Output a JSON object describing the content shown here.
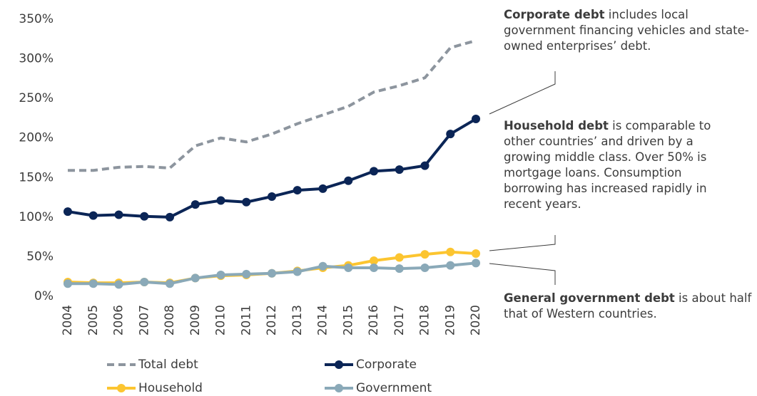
{
  "chart_data": {
    "type": "line",
    "categories": [
      "2004",
      "2005",
      "2006",
      "2007",
      "2008",
      "2009",
      "2010",
      "2011",
      "2012",
      "2013",
      "2014",
      "2015",
      "2016",
      "2017",
      "2018",
      "2019",
      "2020"
    ],
    "series": [
      {
        "name": "Total debt",
        "color": "#8d959e",
        "dashed": true,
        "markers": false,
        "values": [
          159,
          159,
          163,
          164,
          162,
          190,
          200,
          195,
          205,
          218,
          229,
          240,
          258,
          266,
          276,
          314,
          323
        ]
      },
      {
        "name": "Corporate",
        "color": "#0b2556",
        "dashed": false,
        "markers": true,
        "values": [
          107,
          102,
          103,
          101,
          100,
          116,
          121,
          119,
          126,
          134,
          136,
          146,
          158,
          160,
          165,
          205,
          224
        ]
      },
      {
        "name": "Household",
        "color": "#fcc530",
        "dashed": false,
        "markers": true,
        "values": [
          18,
          17,
          17,
          18,
          17,
          23,
          26,
          27,
          29,
          32,
          36,
          39,
          45,
          49,
          53,
          56,
          54
        ]
      },
      {
        "name": "Government",
        "color": "#8aa9b8",
        "dashed": false,
        "markers": true,
        "values": [
          16,
          16,
          15,
          18,
          16,
          23,
          27,
          28,
          29,
          31,
          38,
          36,
          36,
          35,
          36,
          39,
          42
        ]
      }
    ],
    "ylim": [
      0,
      350
    ],
    "yticks": [
      {
        "value": 0,
        "label": "0%"
      },
      {
        "value": 50,
        "label": "50%"
      },
      {
        "value": 100,
        "label": "100%"
      },
      {
        "value": 150,
        "label": "150%"
      },
      {
        "value": 200,
        "label": "200%"
      },
      {
        "value": 250,
        "label": "250%"
      },
      {
        "value": 300,
        "label": "300%"
      },
      {
        "value": 350,
        "label": "350%"
      }
    ],
    "grid": false,
    "annotations": [
      {
        "bold": "Corporate debt",
        "text": "includes local government financing vehicles and state-owned enterprises’ debt."
      },
      {
        "bold": "Household debt",
        "text": "is comparable to other countries’ and driven by a growing middle class. Over 50% is mortgage loans. Consumption borrowing has increased rapidly in recent years."
      },
      {
        "bold": "General government debt",
        "text": "is about half that of Western countries."
      }
    ]
  }
}
